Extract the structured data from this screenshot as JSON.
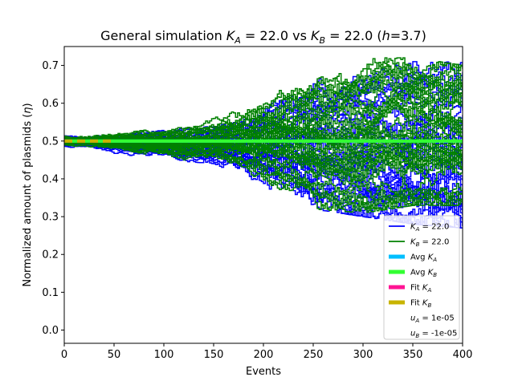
{
  "chart_data": {
    "type": "line",
    "title": "General simulation K_A = 22.0 vs K_B = 22.0 (h=3.7)",
    "title_parts": {
      "prefix": "General simulation ",
      "k": "K",
      "sub_a": "A",
      "val_a": " = 22.0 vs ",
      "sub_b": "B",
      "val_b": " = 22.0 (",
      "h": "h",
      "h_val": "=3.7)"
    },
    "xlabel": "Events",
    "ylabel_parts": {
      "text": "Normalized amount of plasmids (",
      "eta": "η",
      "close": ")"
    },
    "xlim": [
      0,
      400
    ],
    "ylim": [
      -0.035,
      0.75
    ],
    "xticks": [
      0,
      50,
      100,
      150,
      200,
      250,
      300,
      350,
      400
    ],
    "xtick_labels": [
      "0",
      "50",
      "100",
      "150",
      "200",
      "250",
      "300",
      "350",
      "400"
    ],
    "yticks": [
      0.0,
      0.1,
      0.2,
      0.3,
      0.4,
      0.5,
      0.6,
      0.7
    ],
    "ytick_labels": [
      "0.0",
      "0.1",
      "0.2",
      "0.3",
      "0.4",
      "0.5",
      "0.6",
      "0.7"
    ],
    "colors": {
      "series_a": "#0000ff",
      "series_b": "#008000",
      "avg_a": "#00bfff",
      "avg_b": "#32ff32",
      "fit_a": "#ff1493",
      "fit_b": "#c8b400"
    },
    "simulation": {
      "start_value": 0.5,
      "runs_per_series": 40,
      "events": 400,
      "envelope_a": {
        "x": [
          0,
          100,
          150,
          200,
          250,
          300,
          350,
          400
        ],
        "max": [
          0.52,
          0.54,
          0.55,
          0.62,
          0.68,
          0.7,
          0.71,
          0.71
        ],
        "min": [
          0.48,
          0.45,
          0.44,
          0.38,
          0.32,
          0.3,
          0.28,
          0.27
        ]
      },
      "envelope_b": {
        "x": [
          0,
          100,
          150,
          200,
          250,
          300,
          350,
          400
        ],
        "max": [
          0.52,
          0.54,
          0.56,
          0.64,
          0.66,
          0.72,
          0.72,
          0.7
        ],
        "min": [
          0.48,
          0.45,
          0.44,
          0.37,
          0.32,
          0.31,
          0.33,
          0.33
        ]
      }
    },
    "avg_a": {
      "x": [
        0,
        400
      ],
      "y": [
        0.5,
        0.5
      ]
    },
    "avg_b": {
      "x": [
        0,
        400
      ],
      "y": [
        0.5,
        0.5
      ]
    },
    "fit_a": {
      "x": [
        0,
        50
      ],
      "y": [
        0.5,
        0.5
      ]
    },
    "fit_b": {
      "x": [
        0,
        50
      ],
      "y": [
        0.5,
        0.5
      ]
    },
    "legend": {
      "placement": "lower-right",
      "entries": [
        {
          "key": "k_a",
          "sym": "K",
          "sub": "A",
          "text": " = 22.0",
          "color": "#0000ff",
          "style": "line"
        },
        {
          "key": "k_b",
          "sym": "K",
          "sub": "B",
          "text": " = 22.0",
          "color": "#008000",
          "style": "line"
        },
        {
          "key": "avg_a",
          "prefix": "Avg ",
          "sym": "K",
          "sub": "A",
          "text": "",
          "color": "#00bfff",
          "style": "thick"
        },
        {
          "key": "avg_b",
          "prefix": "Avg ",
          "sym": "K",
          "sub": "B",
          "text": "",
          "color": "#32ff32",
          "style": "thick"
        },
        {
          "key": "fit_a",
          "prefix": "Fit ",
          "sym": "K",
          "sub": "A",
          "text": "",
          "color": "#ff1493",
          "style": "thick"
        },
        {
          "key": "fit_b",
          "prefix": "Fit ",
          "sym": "K",
          "sub": "B",
          "text": "",
          "color": "#c8b400",
          "style": "thick"
        },
        {
          "key": "u_a",
          "sym": "u",
          "sub": "A",
          "text": " = 1e-05",
          "color": "",
          "style": "none"
        },
        {
          "key": "u_b",
          "sym": "u",
          "sub": "B",
          "text": " = -1e-05",
          "color": "",
          "style": "none"
        }
      ]
    }
  }
}
